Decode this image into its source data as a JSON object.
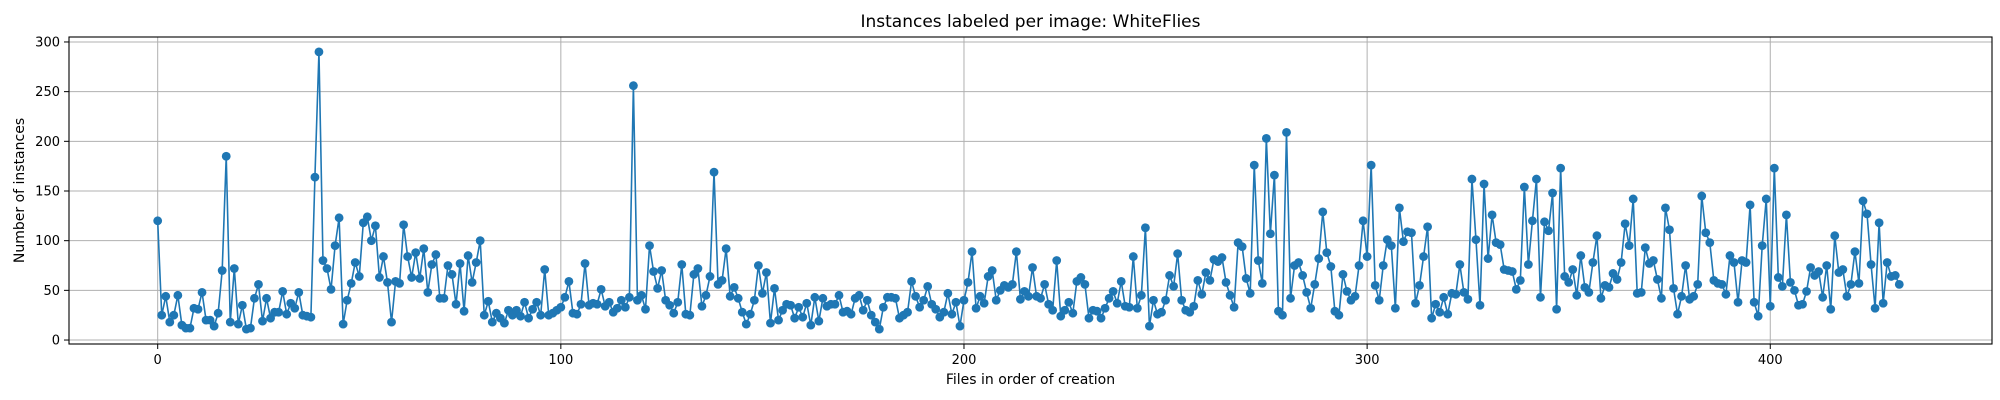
{
  "chart_data": {
    "type": "line",
    "title": "Instances labeled per image: WhiteFlies",
    "xlabel": "Files in order of creation",
    "ylabel": "Number of instances",
    "xlim": [
      -22,
      455
    ],
    "ylim": [
      -4,
      305
    ],
    "xticks": [
      0,
      100,
      200,
      300,
      400
    ],
    "yticks": [
      0,
      50,
      100,
      150,
      200,
      250,
      300
    ],
    "grid": true,
    "legend": "none",
    "series": [
      {
        "color": "#1f77b4",
        "marker": "circle",
        "values": [
          120,
          25,
          44,
          18,
          25,
          45,
          15,
          12,
          12,
          32,
          31,
          48,
          20,
          20,
          14,
          27,
          70,
          185,
          18,
          72,
          16,
          35,
          11,
          12,
          42,
          56,
          19,
          42,
          22,
          28,
          28,
          49,
          26,
          37,
          32,
          48,
          25,
          24,
          23,
          164,
          290,
          80,
          72,
          51,
          95,
          123,
          16,
          40,
          57,
          78,
          64,
          118,
          124,
          100,
          115,
          63,
          84,
          58,
          18,
          59,
          57,
          116,
          84,
          63,
          88,
          62,
          92,
          48,
          76,
          86,
          42,
          42,
          75,
          66,
          36,
          77,
          29,
          85,
          58,
          78,
          100,
          25,
          39,
          18,
          27,
          22,
          17,
          30,
          25,
          30,
          24,
          38,
          22,
          31,
          38,
          25,
          71,
          25,
          27,
          30,
          33,
          43,
          59,
          27,
          26,
          36,
          77,
          35,
          37,
          36,
          51,
          34,
          38,
          28,
          32,
          40,
          33,
          43,
          256,
          40,
          45,
          31,
          95,
          69,
          52,
          70,
          40,
          35,
          27,
          38,
          76,
          26,
          25,
          66,
          72,
          34,
          45,
          64,
          169,
          56,
          60,
          92,
          44,
          53,
          42,
          28,
          16,
          26,
          40,
          75,
          47,
          68,
          17,
          52,
          20,
          30,
          36,
          35,
          22,
          33,
          23,
          37,
          15,
          43,
          19,
          42,
          34,
          36,
          36,
          45,
          28,
          29,
          26,
          42,
          45,
          30,
          40,
          25,
          18,
          11,
          33,
          43,
          43,
          42,
          22,
          25,
          28,
          59,
          44,
          33,
          40,
          54,
          36,
          31,
          23,
          28,
          47,
          26,
          38,
          14,
          40,
          58,
          89,
          32,
          44,
          37,
          64,
          70,
          40,
          50,
          55,
          53,
          56,
          89,
          41,
          49,
          44,
          73,
          44,
          42,
          56,
          36,
          30,
          80,
          24,
          30,
          38,
          27,
          59,
          63,
          56,
          22,
          30,
          29,
          22,
          32,
          42,
          49,
          37,
          59,
          34,
          33,
          84,
          32,
          45,
          113,
          14,
          40,
          26,
          28,
          40,
          65,
          54,
          87,
          40,
          30,
          28,
          34,
          60,
          46,
          68,
          60,
          81,
          79,
          83,
          58,
          45,
          33,
          98,
          94,
          62,
          47,
          176,
          80,
          57,
          203,
          107,
          166,
          29,
          25,
          209,
          42,
          75,
          78,
          65,
          48,
          32,
          56,
          82,
          129,
          88,
          74,
          29,
          25,
          66,
          49,
          40,
          44,
          75,
          120,
          84,
          176,
          55,
          40,
          75,
          101,
          95,
          32,
          133,
          99,
          109,
          108,
          37,
          55,
          84,
          114,
          22,
          36,
          28,
          43,
          26,
          47,
          46,
          76,
          48,
          41,
          162,
          101,
          35,
          157,
          82,
          126,
          98,
          96,
          71,
          70,
          69,
          51,
          60,
          154,
          76,
          120,
          162,
          43,
          119,
          110,
          148,
          31,
          173,
          64,
          58,
          71,
          45,
          85,
          53,
          48,
          78,
          105,
          42,
          55,
          53,
          67,
          61,
          78,
          117,
          95,
          142,
          47,
          48,
          93,
          77,
          80,
          61,
          42,
          133,
          111,
          52,
          26,
          44,
          75,
          41,
          44,
          56,
          145,
          108,
          98,
          60,
          57,
          56,
          46,
          85,
          78,
          38,
          80,
          78,
          136,
          38,
          24,
          95,
          142,
          34,
          173,
          63,
          54,
          126,
          58,
          50,
          35,
          36,
          49,
          73,
          65,
          69,
          43,
          75,
          31,
          105,
          68,
          71,
          44,
          56,
          89,
          57,
          140,
          127,
          76,
          32,
          118,
          37,
          78,
          64,
          65,
          56
        ]
      }
    ]
  }
}
